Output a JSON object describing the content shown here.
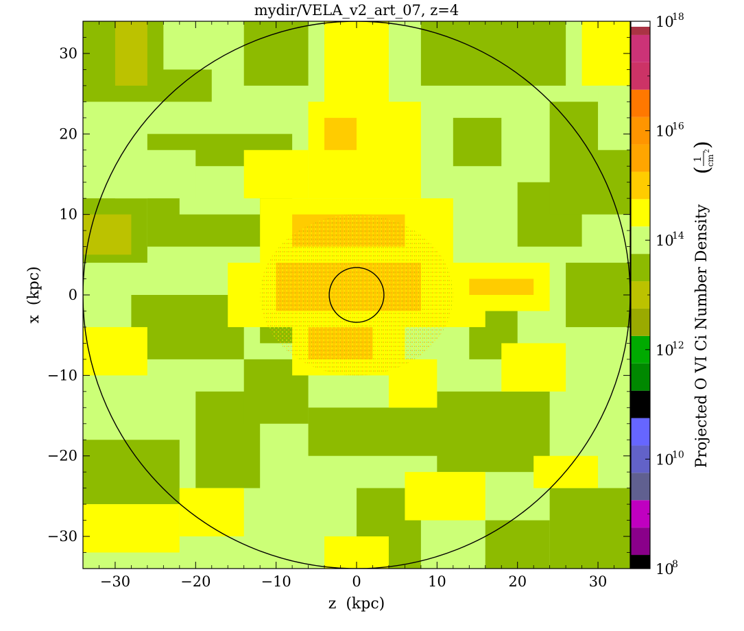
{
  "chart_data": {
    "type": "heatmap",
    "title": "mydir/VELA_v2_art_07, z=4",
    "xlabel": "z  (kpc)",
    "ylabel": "x  (kpc)",
    "xlim": [
      -34,
      34
    ],
    "ylim": [
      -34,
      34
    ],
    "x_ticks": [
      -30,
      -20,
      -10,
      0,
      10,
      20,
      30
    ],
    "y_ticks": [
      -30,
      -20,
      -10,
      0,
      10,
      20,
      30
    ],
    "circles": [
      {
        "cx": 0,
        "cy": 0,
        "r": 34
      },
      {
        "cx": 0,
        "cy": 0,
        "r": 3.4
      }
    ],
    "colorbar": {
      "label": "Projected O VI Ci Number Density",
      "unit_num": "1",
      "unit_den": "cm",
      "unit_den_exp": "2",
      "scale": "log",
      "range": [
        100000000.0,
        1e+18
      ],
      "tick_labels": [
        {
          "base": "10",
          "exp": "18",
          "value": 18
        },
        {
          "base": "10",
          "exp": "16",
          "value": 16
        },
        {
          "base": "10",
          "exp": "14",
          "value": 14
        },
        {
          "base": "10",
          "exp": "12",
          "value": 12
        },
        {
          "base": "10",
          "exp": "10",
          "value": 10
        },
        {
          "base": "10",
          "exp": "8",
          "value": 8
        }
      ],
      "color_steps": [
        {
          "from": 8.0,
          "to": 8.25,
          "color": "#000000"
        },
        {
          "from": 8.25,
          "to": 8.75,
          "color": "#8a008a"
        },
        {
          "from": 8.75,
          "to": 9.25,
          "color": "#c000c0"
        },
        {
          "from": 9.25,
          "to": 9.75,
          "color": "#606090"
        },
        {
          "from": 9.75,
          "to": 10.25,
          "color": "#6262c8"
        },
        {
          "from": 10.25,
          "to": 10.75,
          "color": "#6666ff"
        },
        {
          "from": 10.75,
          "to": 11.25,
          "color": "#000000"
        },
        {
          "from": 11.25,
          "to": 11.75,
          "color": "#008800"
        },
        {
          "from": 11.75,
          "to": 12.25,
          "color": "#00aa00"
        },
        {
          "from": 12.25,
          "to": 12.75,
          "color": "#9aaa00"
        },
        {
          "from": 12.75,
          "to": 13.25,
          "color": "#bcc200"
        },
        {
          "from": 13.25,
          "to": 13.75,
          "color": "#8dbb00"
        },
        {
          "from": 13.75,
          "to": 14.25,
          "color": "#ccff77"
        },
        {
          "from": 14.25,
          "to": 14.75,
          "color": "#ffff00"
        },
        {
          "from": 14.75,
          "to": 15.25,
          "color": "#ffcc00"
        },
        {
          "from": 15.25,
          "to": 15.75,
          "color": "#ffa500"
        },
        {
          "from": 15.75,
          "to": 16.25,
          "color": "#ff9500"
        },
        {
          "from": 16.25,
          "to": 16.75,
          "color": "#ff7800"
        },
        {
          "from": 16.75,
          "to": 17.25,
          "color": "#cc3366"
        },
        {
          "from": 17.25,
          "to": 17.75,
          "color": "#cc3377"
        },
        {
          "from": 17.75,
          "to": 17.9,
          "color": "#aa3344"
        },
        {
          "from": 17.9,
          "to": 18.0,
          "color": "#ffffff"
        }
      ]
    },
    "palette": {
      "dark_green": "#8dbb00",
      "olive": "#bcc200",
      "light_green": "#ccff77",
      "yellow": "#ffff00",
      "gold": "#ffcc00",
      "orange": "#ffa500"
    },
    "patches": [
      {
        "z": [
          -34,
          34
        ],
        "x": [
          -34,
          34
        ],
        "level": "light_green"
      },
      {
        "z": [
          -34,
          -18
        ],
        "x": [
          24,
          34
        ],
        "level": "dark_green"
      },
      {
        "z": [
          -30,
          -26
        ],
        "x": [
          26,
          34
        ],
        "level": "olive"
      },
      {
        "z": [
          -24,
          -14
        ],
        "x": [
          28,
          34
        ],
        "level": "light_green"
      },
      {
        "z": [
          -14,
          -6
        ],
        "x": [
          26,
          34
        ],
        "level": "dark_green"
      },
      {
        "z": [
          -26,
          -8
        ],
        "x": [
          6,
          20
        ],
        "level": "dark_green"
      },
      {
        "z": [
          -34,
          -26
        ],
        "x": [
          4,
          12
        ],
        "level": "dark_green"
      },
      {
        "z": [
          -34,
          -28
        ],
        "x": [
          5,
          10
        ],
        "level": "olive"
      },
      {
        "z": [
          -22,
          -12
        ],
        "x": [
          10,
          16
        ],
        "level": "light_green"
      },
      {
        "z": [
          -28,
          -14
        ],
        "x": [
          -8,
          0
        ],
        "level": "dark_green"
      },
      {
        "z": [
          -20,
          -12
        ],
        "x": [
          -24,
          -12
        ],
        "level": "dark_green"
      },
      {
        "z": [
          -34,
          -22
        ],
        "x": [
          -26,
          -18
        ],
        "level": "dark_green"
      },
      {
        "z": [
          -14,
          -6
        ],
        "x": [
          -16,
          -8
        ],
        "level": "dark_green"
      },
      {
        "z": [
          -12,
          -6
        ],
        "x": [
          -6,
          0
        ],
        "level": "dark_green"
      },
      {
        "z": [
          8,
          26
        ],
        "x": [
          26,
          34
        ],
        "level": "dark_green"
      },
      {
        "z": [
          12,
          18
        ],
        "x": [
          16,
          22
        ],
        "level": "dark_green"
      },
      {
        "z": [
          14,
          20
        ],
        "x": [
          -8,
          -2
        ],
        "level": "dark_green"
      },
      {
        "z": [
          20,
          28
        ],
        "x": [
          6,
          14
        ],
        "level": "dark_green"
      },
      {
        "z": [
          24,
          34
        ],
        "x": [
          10,
          24
        ],
        "level": "dark_green"
      },
      {
        "z": [
          26,
          34
        ],
        "x": [
          -4,
          4
        ],
        "level": "dark_green"
      },
      {
        "z": [
          28,
          34
        ],
        "x": [
          26,
          34
        ],
        "level": "yellow"
      },
      {
        "z": [
          30,
          34
        ],
        "x": [
          18,
          26
        ],
        "level": "light_green"
      },
      {
        "z": [
          10,
          24
        ],
        "x": [
          -22,
          -12
        ],
        "level": "dark_green"
      },
      {
        "z": [
          -6,
          12
        ],
        "x": [
          -20,
          -14
        ],
        "level": "dark_green"
      },
      {
        "z": [
          0,
          8
        ],
        "x": [
          -34,
          -24
        ],
        "level": "dark_green"
      },
      {
        "z": [
          16,
          24
        ],
        "x": [
          -34,
          -28
        ],
        "level": "dark_green"
      },
      {
        "z": [
          24,
          34
        ],
        "x": [
          -34,
          -24
        ],
        "level": "dark_green"
      },
      {
        "z": [
          -4,
          4
        ],
        "x": [
          22,
          34
        ],
        "level": "yellow"
      },
      {
        "z": [
          -6,
          8
        ],
        "x": [
          12,
          24
        ],
        "level": "yellow"
      },
      {
        "z": [
          -4,
          0
        ],
        "x": [
          18,
          22
        ],
        "level": "gold"
      },
      {
        "z": [
          -12,
          12
        ],
        "x": [
          4,
          12
        ],
        "level": "yellow"
      },
      {
        "z": [
          -8,
          6
        ],
        "x": [
          6,
          10
        ],
        "level": "gold"
      },
      {
        "z": [
          -16,
          16
        ],
        "x": [
          -4,
          4
        ],
        "level": "yellow"
      },
      {
        "z": [
          -10,
          8
        ],
        "x": [
          -2,
          4
        ],
        "level": "gold"
      },
      {
        "z": [
          -8,
          6
        ],
        "x": [
          -10,
          -4
        ],
        "level": "yellow"
      },
      {
        "z": [
          -6,
          2
        ],
        "x": [
          -8,
          -4
        ],
        "level": "gold"
      },
      {
        "z": [
          10,
          24
        ],
        "x": [
          -2,
          4
        ],
        "level": "yellow"
      },
      {
        "z": [
          14,
          22
        ],
        "x": [
          0,
          2
        ],
        "level": "gold"
      },
      {
        "z": [
          -34,
          -22
        ],
        "x": [
          -32,
          -26
        ],
        "level": "yellow"
      },
      {
        "z": [
          -22,
          -14
        ],
        "x": [
          -30,
          -24
        ],
        "level": "yellow"
      },
      {
        "z": [
          -4,
          4
        ],
        "x": [
          -34,
          -30
        ],
        "level": "yellow"
      },
      {
        "z": [
          -14,
          -6
        ],
        "x": [
          12,
          18
        ],
        "level": "yellow"
      },
      {
        "z": [
          -30,
          -20
        ],
        "x": [
          12,
          18
        ],
        "level": "light_green"
      },
      {
        "z": [
          -34,
          -26
        ],
        "x": [
          -10,
          -4
        ],
        "level": "yellow"
      },
      {
        "z": [
          6,
          16
        ],
        "x": [
          -28,
          -22
        ],
        "level": "yellow"
      },
      {
        "z": [
          18,
          26
        ],
        "x": [
          -12,
          -6
        ],
        "level": "yellow"
      },
      {
        "z": [
          4,
          10
        ],
        "x": [
          -14,
          -8
        ],
        "level": "yellow"
      },
      {
        "z": [
          22,
          30
        ],
        "x": [
          -24,
          -20
        ],
        "level": "yellow"
      }
    ]
  }
}
